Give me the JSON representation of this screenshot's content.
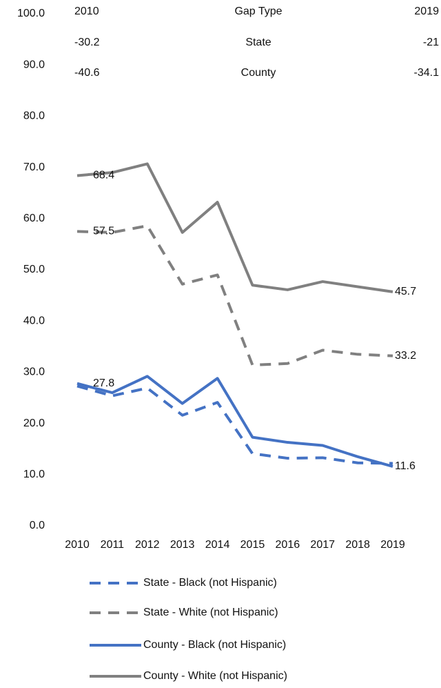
{
  "chart_data": {
    "type": "line",
    "table": {
      "header": [
        "2010",
        "Gap Type",
        "2019"
      ],
      "rows": [
        [
          -30.2,
          "State",
          -21
        ],
        [
          -40.6,
          "County",
          -34.1
        ]
      ]
    },
    "categories": [
      "2010",
      "2011",
      "2012",
      "2013",
      "2014",
      "2015",
      "2016",
      "2017",
      "2018",
      "2019"
    ],
    "ylim": [
      0,
      100
    ],
    "yticks": [
      {
        "value": 0,
        "label": "0.0"
      },
      {
        "value": 10,
        "label": "10.0"
      },
      {
        "value": 20,
        "label": "20.0"
      },
      {
        "value": 30,
        "label": "30.0"
      },
      {
        "value": 40,
        "label": "40.0"
      },
      {
        "value": 50,
        "label": "50.0"
      },
      {
        "value": 60,
        "label": "60.0"
      },
      {
        "value": 70,
        "label": "70.0"
      },
      {
        "value": 80,
        "label": "80.0"
      },
      {
        "value": 90,
        "label": "90.0"
      },
      {
        "value": 100,
        "label": "100.0"
      }
    ],
    "grid": false,
    "series": [
      {
        "name": "State - Black (not Hispanic)",
        "color": "#4472c4",
        "dashed": true,
        "values": [
          27.3,
          25.4,
          26.9,
          21.6,
          24.1,
          14.1,
          13.2,
          13.3,
          12.3,
          12.2
        ]
      },
      {
        "name": "State - White (not Hispanic)",
        "color": "#808080",
        "dashed": true,
        "values": [
          57.5,
          57.3,
          58.6,
          47.2,
          49.0,
          31.4,
          31.7,
          34.3,
          33.5,
          33.2
        ],
        "value_labels": [
          "57.5",
          null,
          null,
          null,
          null,
          null,
          null,
          null,
          null,
          "33.2"
        ]
      },
      {
        "name": "County - Black (not Hispanic)",
        "color": "#4472c4",
        "dashed": false,
        "values": [
          27.8,
          26.0,
          29.2,
          23.9,
          28.8,
          17.3,
          16.3,
          15.7,
          13.5,
          11.6
        ],
        "value_labels": [
          "27.8",
          null,
          null,
          null,
          null,
          null,
          null,
          null,
          null,
          "11.6"
        ]
      },
      {
        "name": "County - White (not Hispanic)",
        "color": "#808080",
        "dashed": false,
        "values": [
          68.4,
          69.0,
          70.7,
          57.3,
          63.2,
          47.0,
          46.1,
          47.7,
          46.7,
          45.7
        ],
        "value_labels": [
          "68.4",
          null,
          null,
          null,
          null,
          null,
          null,
          null,
          null,
          "45.7"
        ]
      }
    ]
  }
}
